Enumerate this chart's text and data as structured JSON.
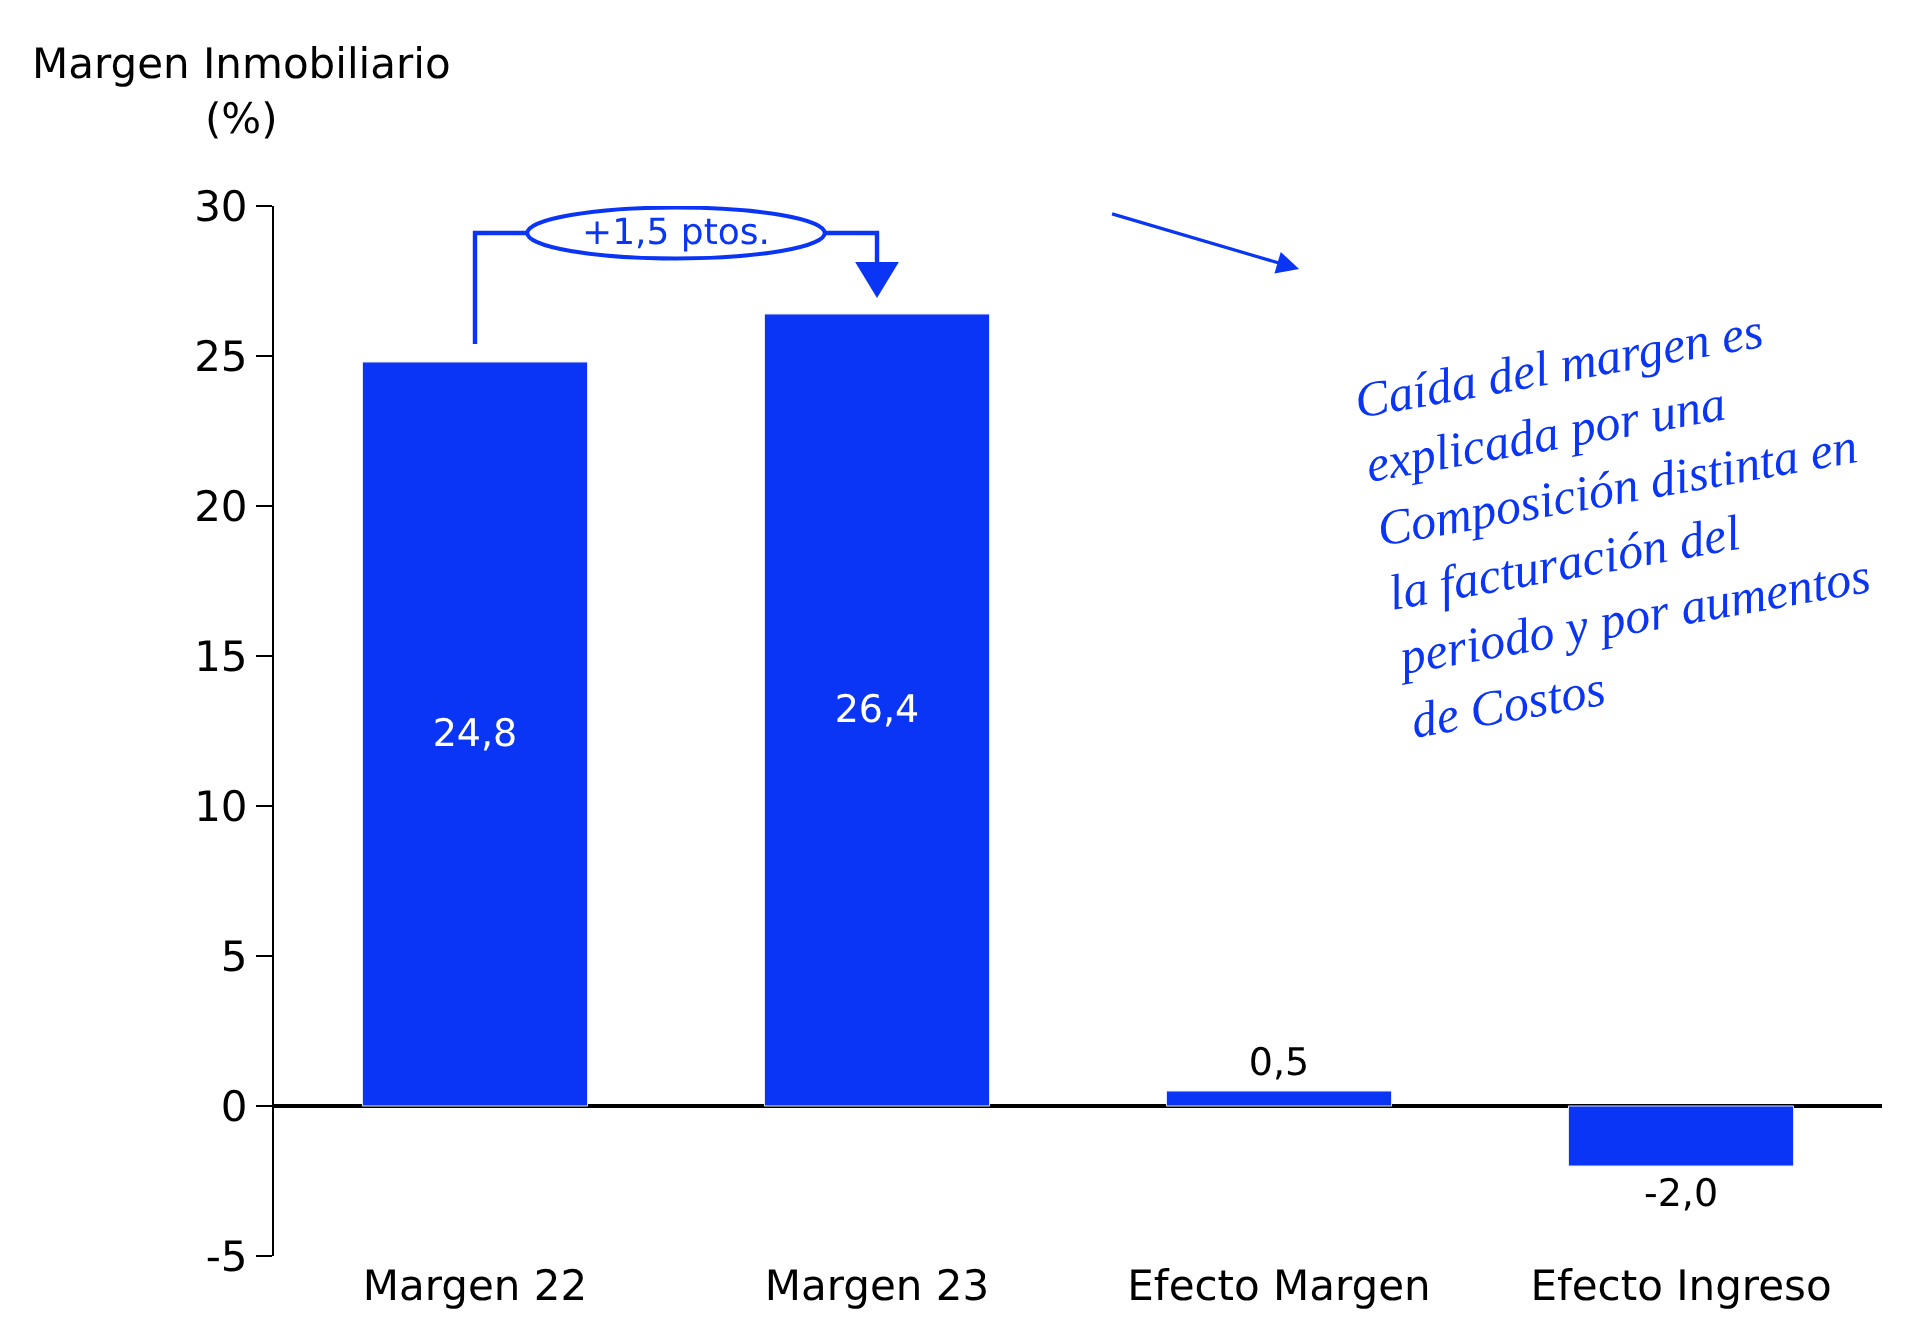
{
  "chart_data": {
    "type": "bar",
    "ylabel": "Margen Inmobiliario\n(%)",
    "categories": [
      "Margen 22",
      "Margen 23",
      "Efecto Margen",
      "Efecto Ingreso"
    ],
    "values": [
      24.8,
      26.4,
      0.5,
      -2.0
    ],
    "value_labels": [
      "24,8",
      "26,4",
      "0,5",
      "-2,0"
    ],
    "color": "#0a35f5",
    "ylim": [
      -5,
      30
    ],
    "yticks": [
      -5,
      0,
      5,
      10,
      15,
      20,
      25,
      30
    ],
    "legend": false,
    "annotations": [
      "+1,5 ptos.",
      "Caída del margen es\nexplicada por una\nComposición distinta en\nla facturación del\nperiodo y por aumentos\nde Costos"
    ]
  }
}
